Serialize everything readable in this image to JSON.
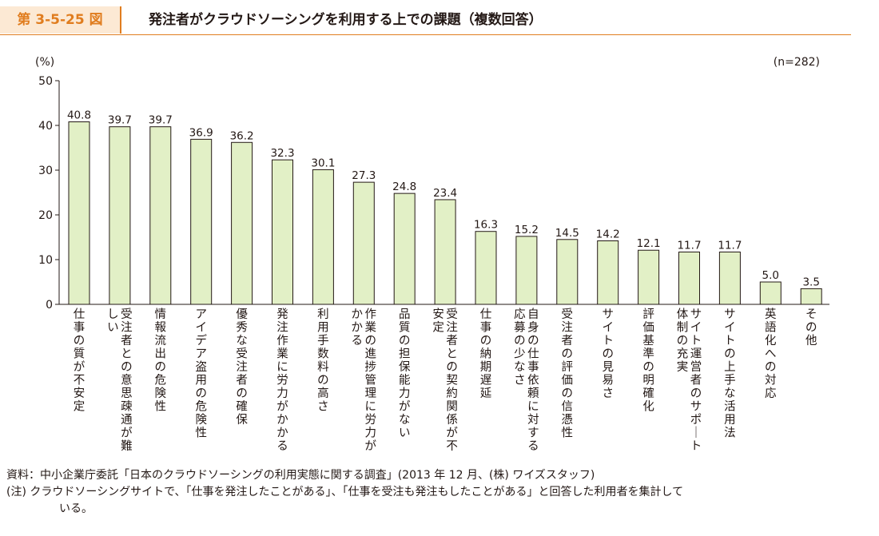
{
  "header": {
    "figure_label": "第 3-5-25 図",
    "title": "発注者がクラウドソーシングを利用する上での課題（複数回答）"
  },
  "colors": {
    "accent": "#e07d1f",
    "label_bg": "#fce9d4",
    "bar_fill": "#e2f0c6",
    "bar_stroke": "#231815"
  },
  "chart_data": {
    "type": "bar",
    "title": "発注者がクラウドソーシングを利用する上での課題（複数回答）",
    "ylabel": "(%)",
    "sample_note": "(n=282)",
    "ylim": [
      0,
      50
    ],
    "yticks": [
      "0",
      "10",
      "20",
      "30",
      "40",
      "50"
    ],
    "categories": [
      "仕事の質が不安定",
      "受注者との意思疎通が難しい",
      "情報流出の危険性",
      "アイデア盗用の危険性",
      "優秀な受注者の確保",
      "発注作業に労力がかかる",
      "利用手数料の高さ",
      "作業の進捗管理に労力がかかる",
      "品質の担保能力がない",
      "受注者との契約関係が不安定",
      "仕事の納期遅延",
      "自身の仕事依頼に対する応募の少なさ",
      "受注者の評価の信憑性",
      "サイトの見易さ",
      "評価基準の明確化",
      "サイト運営者のサポート体制の充実",
      "サイトの上手な活用法",
      "英語化への対応",
      "その他"
    ],
    "category_label_lines": [
      [
        "仕事の質が不安定"
      ],
      [
        "受注者との意思疎通が難",
        "しい"
      ],
      [
        "情報流出の危険性"
      ],
      [
        "アイデア盗用の危険性"
      ],
      [
        "優秀な受注者の確保"
      ],
      [
        "発注作業に労力がかかる"
      ],
      [
        "利用手数料の高さ"
      ],
      [
        "作業の進捗管理に労力が",
        "かかる"
      ],
      [
        "品質の担保能力がない"
      ],
      [
        "受注者との契約関係が不",
        "安定"
      ],
      [
        "仕事の納期遅延"
      ],
      [
        "自身の仕事依頼に対する",
        "応募の少なさ"
      ],
      [
        "受注者の評価の信憑性"
      ],
      [
        "サイトの見易さ"
      ],
      [
        "評価基準の明確化"
      ],
      [
        "サイト運営者のサポート",
        "体制の充実"
      ],
      [
        "サイトの上手な活用法"
      ],
      [
        "英語化への対応"
      ],
      [
        "その他"
      ]
    ],
    "values": [
      40.8,
      39.7,
      39.7,
      36.9,
      36.2,
      32.3,
      30.1,
      27.3,
      24.8,
      23.4,
      16.3,
      15.2,
      14.5,
      14.2,
      12.1,
      11.7,
      11.7,
      5.0,
      3.5
    ],
    "value_labels": [
      "40.8",
      "39.7",
      "39.7",
      "36.9",
      "36.2",
      "32.3",
      "30.1",
      "27.3",
      "24.8",
      "23.4",
      "16.3",
      "15.2",
      "14.5",
      "14.2",
      "12.1",
      "11.7",
      "11.7",
      "5.0",
      "3.5"
    ]
  },
  "notes": {
    "source": "資料：中小企業庁委託「日本のクラウドソーシングの利用実態に関する調査」(2013 年 12 月、(株) ワイズスタッフ)",
    "note_line1": "(注) クラウドソーシングサイトで、「仕事を発注したことがある」、「仕事を受注も発注もしたことがある」と回答した利用者を集計して",
    "note_line2": "いる。"
  }
}
